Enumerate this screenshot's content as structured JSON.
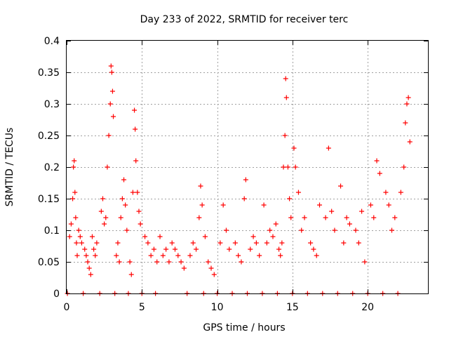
{
  "chart_data": {
    "type": "scatter",
    "title": "Day 233 of 2022, SRMTID for receiver terc",
    "xlabel": "GPS time / hours",
    "ylabel": "SRMTID / TECUs",
    "xlim": [
      0,
      24
    ],
    "ylim": [
      0,
      0.4
    ],
    "xticks": [
      0,
      5,
      10,
      15,
      20
    ],
    "yticks": [
      0,
      0.05,
      0.1,
      0.15,
      0.2,
      0.25,
      0.3,
      0.35,
      0.4
    ],
    "ytick_labels": [
      "0",
      "0.05",
      "0.1",
      "0.15",
      "0.2",
      "0.25",
      "0.3",
      "0.35",
      "0.4"
    ],
    "grid": true,
    "marker": "+",
    "color": "#ff0000",
    "series": [
      {
        "name": "terc",
        "points": [
          [
            0.05,
            0.0
          ],
          [
            0.2,
            0.09
          ],
          [
            0.3,
            0.11
          ],
          [
            0.4,
            0.15
          ],
          [
            0.45,
            0.2
          ],
          [
            0.5,
            0.21
          ],
          [
            0.55,
            0.16
          ],
          [
            0.6,
            0.12
          ],
          [
            0.65,
            0.08
          ],
          [
            0.7,
            0.06
          ],
          [
            0.8,
            0.1
          ],
          [
            0.9,
            0.09
          ],
          [
            1.0,
            0.08
          ],
          [
            1.1,
            0.0
          ],
          [
            1.2,
            0.07
          ],
          [
            1.3,
            0.06
          ],
          [
            1.4,
            0.05
          ],
          [
            1.5,
            0.04
          ],
          [
            1.6,
            0.03
          ],
          [
            1.7,
            0.09
          ],
          [
            1.8,
            0.07
          ],
          [
            1.9,
            0.06
          ],
          [
            2.0,
            0.08
          ],
          [
            2.2,
            0.0
          ],
          [
            2.3,
            0.13
          ],
          [
            2.4,
            0.15
          ],
          [
            2.5,
            0.11
          ],
          [
            2.6,
            0.12
          ],
          [
            2.7,
            0.2
          ],
          [
            2.8,
            0.25
          ],
          [
            2.9,
            0.3
          ],
          [
            2.95,
            0.36
          ],
          [
            3.0,
            0.35
          ],
          [
            3.05,
            0.32
          ],
          [
            3.1,
            0.28
          ],
          [
            3.2,
            0.0
          ],
          [
            3.3,
            0.06
          ],
          [
            3.4,
            0.08
          ],
          [
            3.5,
            0.05
          ],
          [
            3.6,
            0.12
          ],
          [
            3.7,
            0.15
          ],
          [
            3.8,
            0.18
          ],
          [
            3.9,
            0.14
          ],
          [
            4.0,
            0.1
          ],
          [
            4.1,
            0.0
          ],
          [
            4.2,
            0.05
          ],
          [
            4.3,
            0.03
          ],
          [
            4.4,
            0.16
          ],
          [
            4.5,
            0.29
          ],
          [
            4.55,
            0.26
          ],
          [
            4.6,
            0.21
          ],
          [
            4.7,
            0.16
          ],
          [
            4.8,
            0.13
          ],
          [
            4.9,
            0.11
          ],
          [
            5.0,
            0.0
          ],
          [
            5.2,
            0.09
          ],
          [
            5.4,
            0.08
          ],
          [
            5.6,
            0.06
          ],
          [
            5.8,
            0.07
          ],
          [
            5.9,
            0.0
          ],
          [
            6.0,
            0.05
          ],
          [
            6.2,
            0.09
          ],
          [
            6.4,
            0.06
          ],
          [
            6.6,
            0.07
          ],
          [
            6.8,
            0.05
          ],
          [
            7.0,
            0.08
          ],
          [
            7.2,
            0.07
          ],
          [
            7.4,
            0.06
          ],
          [
            7.6,
            0.05
          ],
          [
            7.8,
            0.04
          ],
          [
            8.0,
            0.0
          ],
          [
            8.2,
            0.06
          ],
          [
            8.4,
            0.08
          ],
          [
            8.6,
            0.07
          ],
          [
            8.8,
            0.12
          ],
          [
            8.9,
            0.17
          ],
          [
            9.0,
            0.14
          ],
          [
            9.1,
            0.0
          ],
          [
            9.2,
            0.09
          ],
          [
            9.4,
            0.05
          ],
          [
            9.6,
            0.04
          ],
          [
            9.8,
            0.03
          ],
          [
            10.0,
            0.0
          ],
          [
            10.2,
            0.08
          ],
          [
            10.4,
            0.14
          ],
          [
            10.6,
            0.1
          ],
          [
            10.8,
            0.07
          ],
          [
            11.0,
            0.0
          ],
          [
            11.2,
            0.08
          ],
          [
            11.4,
            0.06
          ],
          [
            11.6,
            0.05
          ],
          [
            11.8,
            0.15
          ],
          [
            11.9,
            0.18
          ],
          [
            12.0,
            0.0
          ],
          [
            12.2,
            0.07
          ],
          [
            12.4,
            0.09
          ],
          [
            12.6,
            0.08
          ],
          [
            12.8,
            0.06
          ],
          [
            13.0,
            0.0
          ],
          [
            13.1,
            0.14
          ],
          [
            13.3,
            0.08
          ],
          [
            13.5,
            0.1
          ],
          [
            13.7,
            0.09
          ],
          [
            13.9,
            0.11
          ],
          [
            14.0,
            0.0
          ],
          [
            14.1,
            0.07
          ],
          [
            14.2,
            0.06
          ],
          [
            14.3,
            0.08
          ],
          [
            14.4,
            0.2
          ],
          [
            14.5,
            0.25
          ],
          [
            14.55,
            0.34
          ],
          [
            14.6,
            0.31
          ],
          [
            14.7,
            0.2
          ],
          [
            14.8,
            0.15
          ],
          [
            14.9,
            0.12
          ],
          [
            15.0,
            0.0
          ],
          [
            15.1,
            0.23
          ],
          [
            15.2,
            0.2
          ],
          [
            15.4,
            0.16
          ],
          [
            15.6,
            0.1
          ],
          [
            15.8,
            0.12
          ],
          [
            16.0,
            0.0
          ],
          [
            16.2,
            0.08
          ],
          [
            16.4,
            0.07
          ],
          [
            16.6,
            0.06
          ],
          [
            16.8,
            0.14
          ],
          [
            17.0,
            0.0
          ],
          [
            17.2,
            0.12
          ],
          [
            17.4,
            0.23
          ],
          [
            17.6,
            0.13
          ],
          [
            17.8,
            0.1
          ],
          [
            18.0,
            0.0
          ],
          [
            18.2,
            0.17
          ],
          [
            18.4,
            0.08
          ],
          [
            18.6,
            0.12
          ],
          [
            18.8,
            0.11
          ],
          [
            19.0,
            0.0
          ],
          [
            19.2,
            0.1
          ],
          [
            19.4,
            0.08
          ],
          [
            19.6,
            0.13
          ],
          [
            19.8,
            0.05
          ],
          [
            20.0,
            0.0
          ],
          [
            20.2,
            0.14
          ],
          [
            20.4,
            0.12
          ],
          [
            20.6,
            0.21
          ],
          [
            20.8,
            0.19
          ],
          [
            21.0,
            0.0
          ],
          [
            21.2,
            0.16
          ],
          [
            21.4,
            0.14
          ],
          [
            21.6,
            0.1
          ],
          [
            21.8,
            0.12
          ],
          [
            22.0,
            0.0
          ],
          [
            22.2,
            0.16
          ],
          [
            22.4,
            0.2
          ],
          [
            22.5,
            0.27
          ],
          [
            22.6,
            0.3
          ],
          [
            22.7,
            0.31
          ],
          [
            22.8,
            0.24
          ]
        ]
      }
    ]
  }
}
